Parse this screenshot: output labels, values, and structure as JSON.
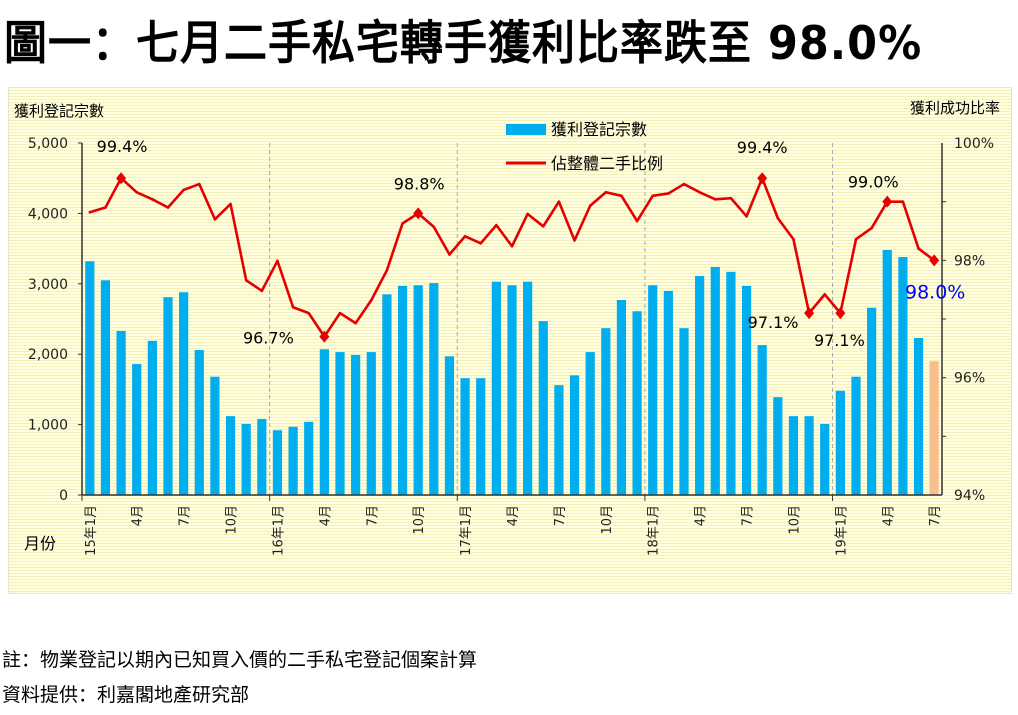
{
  "title": "圖一：七月二手私宅轉手獲利比率跌至 98.0%",
  "footnotes": {
    "note": "註：物業登記以期內已知買入價的二手私宅登記個案計算",
    "source": "資料提供：利嘉閣地產研究部"
  },
  "chart_data": {
    "type": "bar+line",
    "title": "圖一：七月二手私宅轉手獲利比率跌至 98.0%",
    "xlabel": "月份",
    "ylabel_left": "獲利登記宗數",
    "ylabel_right": "獲利成功比率",
    "ylim_left": [
      0,
      5000
    ],
    "ylim_right": [
      94,
      100
    ],
    "left_ticks": [
      "0",
      "1,000",
      "2,000",
      "3,000",
      "4,000",
      "5,000"
    ],
    "right_ticks": [
      "94%",
      "96%",
      "98%",
      "100%"
    ],
    "x_tick_labels": [
      "15年1月",
      "4月",
      "7月",
      "10月",
      "16年1月",
      "4月",
      "7月",
      "10月",
      "17年1月",
      "4月",
      "7月",
      "10月",
      "18年1月",
      "4月",
      "7月",
      "10月",
      "19年1月",
      "4月",
      "7月"
    ],
    "legend": {
      "placement": "top-center",
      "bar": "獲利登記宗數",
      "line": "佔整體二手比例"
    },
    "colors": {
      "bar": "#00AEEF",
      "bar_latest": "#F9BE8E",
      "line": "#E60000",
      "latest_label": "#0000FF"
    },
    "categories": [
      "2015-01",
      "2015-02",
      "2015-03",
      "2015-04",
      "2015-05",
      "2015-06",
      "2015-07",
      "2015-08",
      "2015-09",
      "2015-10",
      "2015-11",
      "2015-12",
      "2016-01",
      "2016-02",
      "2016-03",
      "2016-04",
      "2016-05",
      "2016-06",
      "2016-07",
      "2016-08",
      "2016-09",
      "2016-10",
      "2016-11",
      "2016-12",
      "2017-01",
      "2017-02",
      "2017-03",
      "2017-04",
      "2017-05",
      "2017-06",
      "2017-07",
      "2017-08",
      "2017-09",
      "2017-10",
      "2017-11",
      "2017-12",
      "2018-01",
      "2018-02",
      "2018-03",
      "2018-04",
      "2018-05",
      "2018-06",
      "2018-07",
      "2018-08",
      "2018-09",
      "2018-10",
      "2018-11",
      "2018-12",
      "2019-01",
      "2019-02",
      "2019-03",
      "2019-04",
      "2019-05",
      "2019-06",
      "2019-07"
    ],
    "series": [
      {
        "name": "獲利登記宗數",
        "type": "bar",
        "axis": "left",
        "values": [
          3320,
          3050,
          2330,
          1860,
          2190,
          2810,
          2880,
          2060,
          1680,
          1120,
          1010,
          1080,
          920,
          970,
          1040,
          2070,
          2030,
          1990,
          2030,
          2850,
          2970,
          2980,
          3010,
          1970,
          1660,
          1660,
          3030,
          2980,
          3030,
          2470,
          1560,
          1700,
          2030,
          2370,
          2770,
          2610,
          2980,
          2900,
          2370,
          3110,
          3240,
          3170,
          2970,
          2130,
          1390,
          1120,
          1120,
          1010,
          1480,
          1680,
          2660,
          3480,
          3380,
          2230,
          1900
        ]
      },
      {
        "name": "佔整體二手比例",
        "type": "line",
        "axis": "right",
        "values": [
          98.82,
          98.9,
          99.4,
          99.16,
          99.04,
          98.9,
          99.2,
          99.3,
          98.7,
          98.96,
          97.66,
          97.48,
          97.99,
          97.2,
          97.1,
          96.7,
          97.1,
          96.93,
          97.32,
          97.83,
          98.63,
          98.8,
          98.57,
          98.1,
          98.41,
          98.29,
          98.6,
          98.24,
          98.79,
          98.58,
          99.0,
          98.34,
          98.93,
          99.16,
          99.1,
          98.67,
          99.1,
          99.14,
          99.3,
          99.16,
          99.04,
          99.06,
          98.75,
          99.4,
          98.72,
          98.36,
          97.1,
          97.42,
          97.1,
          98.36,
          98.55,
          99.0,
          99.0,
          98.2,
          98.0
        ]
      }
    ],
    "annotations": [
      {
        "index": 2,
        "text": "99.4%"
      },
      {
        "index": 15,
        "text": "96.7%"
      },
      {
        "index": 21,
        "text": "98.8%"
      },
      {
        "index": 43,
        "text": "99.4%"
      },
      {
        "index": 46,
        "text": "97.1%"
      },
      {
        "index": 48,
        "text": "97.1%"
      },
      {
        "index": 51,
        "text": "99.0%"
      },
      {
        "index": 54,
        "text": "98.0%"
      }
    ]
  }
}
